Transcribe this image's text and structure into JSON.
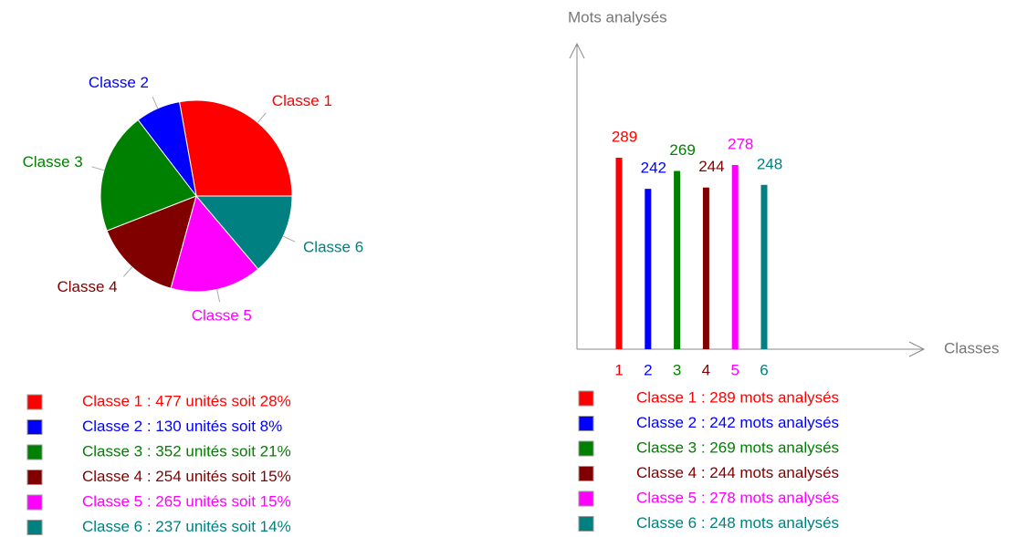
{
  "chart_data": [
    {
      "type": "pie",
      "categories": [
        "Classe 1",
        "Classe 2",
        "Classe 3",
        "Classe 4",
        "Classe 5",
        "Classe 6"
      ],
      "values": [
        477,
        130,
        352,
        254,
        265,
        237
      ],
      "colors": [
        "#ff0000",
        "#0000ff",
        "#008000",
        "#800000",
        "#ff00ff",
        "#008080"
      ],
      "legend_labels": [
        "Classe 1 : 477 unités soit 28%",
        "Classe 2 : 130 unités soit 8%",
        "Classe 3 : 352 unités soit 21%",
        "Classe 4 : 254 unités soit 15%",
        "Classe 5 : 265 unités soit 15%",
        "Classe 6 : 237 unités soit 14%"
      ]
    },
    {
      "type": "bar",
      "categories": [
        "1",
        "2",
        "3",
        "4",
        "5",
        "6"
      ],
      "values": [
        289,
        242,
        269,
        244,
        278,
        248
      ],
      "colors": [
        "#ff0000",
        "#0000ff",
        "#008000",
        "#800000",
        "#ff00ff",
        "#008080"
      ],
      "ylim": [
        0,
        450
      ],
      "x_label": "Classes",
      "y_label": "Mots analysés",
      "legend_labels": [
        "Classe 1 : 289 mots analysés",
        "Classe 2 : 242 mots analysés",
        "Classe 3 : 269 mots analysés",
        "Classe 4 : 244 mots analysés",
        "Classe 5 : 278 mots analysés",
        "Classe 6 : 248 mots analysés"
      ]
    }
  ]
}
